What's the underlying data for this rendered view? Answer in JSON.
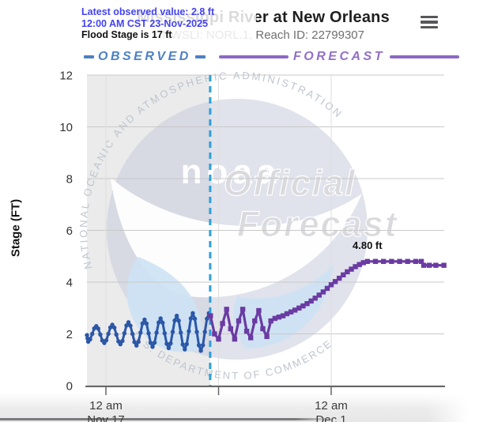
{
  "header": {
    "title": "Mississippi River at New Orleans",
    "subtitle": "NWSLI: NORL.1, Reach ID: 22799307"
  },
  "tooltip": {
    "latest_observed": "Latest observed value: 2.8 ft",
    "timestamp": "12:00 AM CST 23-Nov-2025",
    "flood_stage": "Flood Stage is 17 ft",
    "text_color": "#4343ef"
  },
  "legend": {
    "observed_label": "OBSERVED",
    "observed_color": "#4d80c4",
    "forecast_label": "FORECAST",
    "forecast_color": "#9270c6"
  },
  "watermark": {
    "ring_text_top": "NATIONAL OCEANIC AND ATMOSPHERIC ADMINISTRATION",
    "ring_text_bottom": "U.S. DEPARTMENT OF COMMERCE",
    "logo_text": "noaa",
    "overlay_line1": "Official",
    "overlay_line2": "Forecast"
  },
  "chart_data": {
    "type": "line",
    "ylabel": "Stage (FT)",
    "ylim": [
      0,
      12
    ],
    "yticks": [
      0,
      2,
      4,
      6,
      8,
      10,
      12
    ],
    "x_domain_days": [
      -1.18,
      21.0
    ],
    "xticks": [
      {
        "day": 0,
        "line1": "12 am",
        "line2": "Nov 17"
      },
      {
        "day": 7,
        "line1": "",
        "line2": ""
      },
      {
        "day": 14,
        "line1": "12 am",
        "line2": "Dec 1"
      }
    ],
    "divider_day": 6.48,
    "divider_color": "#2f9fd8",
    "observed_region_color": "#ebebeb",
    "flood_stage_ft": 17,
    "crest_annotation": {
      "label": "4.80 ft",
      "day": 16.3,
      "stage": 4.8
    },
    "series": [
      {
        "name": "observed",
        "color": "#2b57a8",
        "style": "dotted-wave",
        "points": [
          [
            -1.18,
            1.95
          ],
          [
            -1.1,
            1.7
          ],
          [
            -0.6,
            2.3
          ],
          [
            -0.1,
            1.65
          ],
          [
            0.4,
            2.35
          ],
          [
            0.9,
            1.6
          ],
          [
            1.4,
            2.45
          ],
          [
            1.9,
            1.55
          ],
          [
            2.4,
            2.55
          ],
          [
            2.9,
            1.5
          ],
          [
            3.4,
            2.6
          ],
          [
            3.9,
            1.45
          ],
          [
            4.4,
            2.7
          ],
          [
            4.9,
            1.4
          ],
          [
            5.4,
            2.8
          ],
          [
            5.9,
            1.35
          ],
          [
            6.4,
            2.8
          ]
        ]
      },
      {
        "name": "forecast",
        "color": "#6a3ba2",
        "style": "line-squares",
        "points": [
          [
            6.5,
            2.7
          ],
          [
            6.75,
            2.0
          ],
          [
            7.0,
            1.8
          ],
          [
            7.25,
            2.4
          ],
          [
            7.5,
            2.95
          ],
          [
            7.75,
            2.2
          ],
          [
            8.0,
            1.8
          ],
          [
            8.25,
            2.5
          ],
          [
            8.5,
            2.95
          ],
          [
            8.75,
            2.1
          ],
          [
            9.0,
            1.85
          ],
          [
            9.25,
            2.5
          ],
          [
            9.5,
            2.9
          ],
          [
            9.75,
            2.2
          ],
          [
            10.0,
            1.9
          ],
          [
            10.25,
            2.5
          ],
          [
            10.5,
            2.6
          ],
          [
            10.75,
            2.65
          ],
          [
            11.0,
            2.7
          ],
          [
            11.25,
            2.78
          ],
          [
            11.5,
            2.85
          ],
          [
            11.75,
            2.92
          ],
          [
            12.0,
            3.0
          ],
          [
            12.25,
            3.08
          ],
          [
            12.5,
            3.17
          ],
          [
            12.75,
            3.27
          ],
          [
            13.0,
            3.38
          ],
          [
            13.25,
            3.5
          ],
          [
            13.5,
            3.62
          ],
          [
            13.75,
            3.76
          ],
          [
            14.0,
            3.9
          ],
          [
            14.25,
            4.02
          ],
          [
            14.5,
            4.15
          ],
          [
            14.75,
            4.28
          ],
          [
            15.0,
            4.4
          ],
          [
            15.25,
            4.5
          ],
          [
            15.5,
            4.6
          ],
          [
            15.75,
            4.68
          ],
          [
            16.0,
            4.75
          ],
          [
            16.25,
            4.8
          ],
          [
            16.75,
            4.8
          ],
          [
            17.25,
            4.8
          ],
          [
            17.75,
            4.8
          ],
          [
            18.25,
            4.8
          ],
          [
            18.75,
            4.8
          ],
          [
            19.25,
            4.8
          ],
          [
            19.6,
            4.8
          ],
          [
            19.75,
            4.65
          ],
          [
            20.1,
            4.65
          ],
          [
            20.5,
            4.65
          ],
          [
            21.0,
            4.65
          ]
        ]
      }
    ]
  }
}
